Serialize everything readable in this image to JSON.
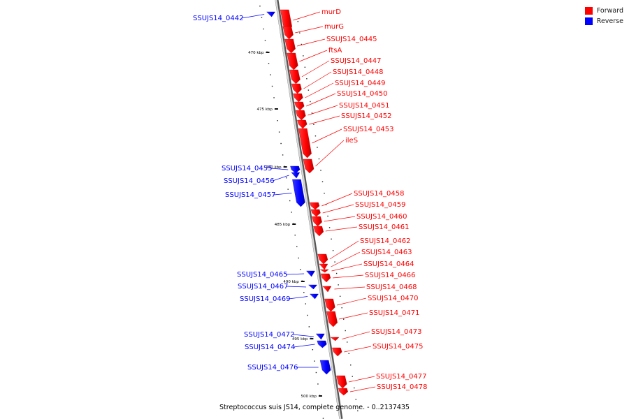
{
  "caption": "Streptococcus suis JS14, complete genome. - 0..2137435",
  "legend": [
    {
      "label": "Forward",
      "color": "#ff0000"
    },
    {
      "label": "Reverse",
      "color": "#0000ff"
    }
  ],
  "colors": {
    "forward": "#ff0000",
    "reverse": "#0000ff",
    "backbone": "#999999"
  },
  "ticks": [
    {
      "label": "470 kbp"
    },
    {
      "label": "475 kbp"
    },
    {
      "label": "480 kbp"
    },
    {
      "label": "485 kbp"
    },
    {
      "label": "490 kbp"
    },
    {
      "label": "495 kbp"
    },
    {
      "label": "500 kbp"
    }
  ],
  "genes": [
    {
      "name": "SSUJS14_0442",
      "strand": "reverse"
    },
    {
      "name": "murD",
      "strand": "forward"
    },
    {
      "name": "murG",
      "strand": "forward"
    },
    {
      "name": "SSUJS14_0445",
      "strand": "forward"
    },
    {
      "name": "ftsA",
      "strand": "forward"
    },
    {
      "name": "SSUJS14_0447",
      "strand": "forward"
    },
    {
      "name": "SSUJS14_0448",
      "strand": "forward"
    },
    {
      "name": "SSUJS14_0449",
      "strand": "forward"
    },
    {
      "name": "SSUJS14_0450",
      "strand": "forward"
    },
    {
      "name": "SSUJS14_0451",
      "strand": "forward"
    },
    {
      "name": "SSUJS14_0452",
      "strand": "forward"
    },
    {
      "name": "SSUJS14_0453",
      "strand": "forward"
    },
    {
      "name": "ileS",
      "strand": "forward"
    },
    {
      "name": "SSUJS14_0455",
      "strand": "reverse"
    },
    {
      "name": "SSUJS14_0456",
      "strand": "reverse"
    },
    {
      "name": "SSUJS14_0457",
      "strand": "reverse"
    },
    {
      "name": "SSUJS14_0458",
      "strand": "forward"
    },
    {
      "name": "SSUJS14_0459",
      "strand": "forward"
    },
    {
      "name": "SSUJS14_0460",
      "strand": "forward"
    },
    {
      "name": "SSUJS14_0461",
      "strand": "forward"
    },
    {
      "name": "SSUJS14_0462",
      "strand": "forward"
    },
    {
      "name": "SSUJS14_0463",
      "strand": "forward"
    },
    {
      "name": "SSUJS14_0464",
      "strand": "forward"
    },
    {
      "name": "SSUJS14_0465",
      "strand": "reverse"
    },
    {
      "name": "SSUJS14_0466",
      "strand": "forward"
    },
    {
      "name": "SSUJS14_0467",
      "strand": "reverse"
    },
    {
      "name": "SSUJS14_0468",
      "strand": "forward"
    },
    {
      "name": "SSUJS14_0469",
      "strand": "reverse"
    },
    {
      "name": "SSUJS14_0470",
      "strand": "forward"
    },
    {
      "name": "SSUJS14_0471",
      "strand": "forward"
    },
    {
      "name": "SSUJS14_0472",
      "strand": "reverse"
    },
    {
      "name": "SSUJS14_0473",
      "strand": "forward"
    },
    {
      "name": "SSUJS14_0474",
      "strand": "reverse"
    },
    {
      "name": "SSUJS14_0475",
      "strand": "forward"
    },
    {
      "name": "SSUJS14_0476",
      "strand": "reverse"
    },
    {
      "name": "SSUJS14_0477",
      "strand": "forward"
    },
    {
      "name": "SSUJS14_0478",
      "strand": "forward"
    }
  ]
}
